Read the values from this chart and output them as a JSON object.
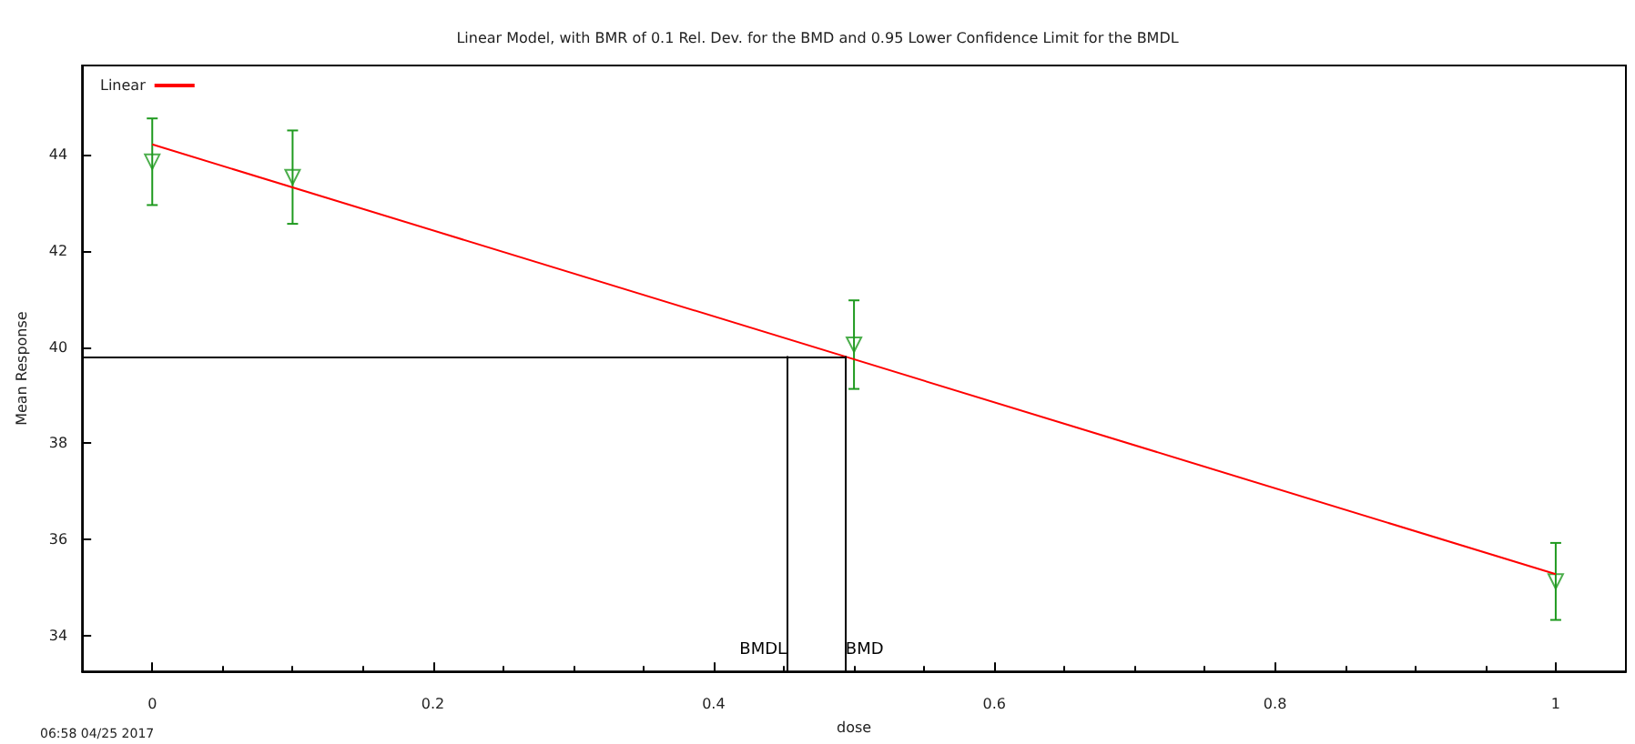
{
  "chart_data": {
    "type": "scatter",
    "title": "Linear Model, with BMR of 0.1 Rel. Dev. for the BMD and 0.95 Lower Confidence Limit for the BMDL",
    "xlabel": "dose",
    "ylabel": "Mean Response",
    "annotations": [
      "06:58 04/25 2017"
    ],
    "series": [
      {
        "color": "#1f9a1f",
        "x": [
          0,
          0.1,
          0.5,
          1
        ],
        "values": [
          43.85,
          43.53,
          40.05,
          35.13
        ],
        "errors": [
          0.9,
          0.97,
          0.92,
          0.8
        ],
        "marker": "triangle"
      },
      {
        "type": "line",
        "name": "Linear",
        "color": "#ff0000",
        "x": [
          0,
          1
        ],
        "values": [
          44.21,
          35.28
        ],
        "marker": "none"
      }
    ],
    "ref_lines": [
      {
        "axis": "y",
        "value": 39.81,
        "label": null,
        "color": "#000000"
      },
      {
        "axis": "x",
        "value": 0.452,
        "label": "BMDL",
        "color": "#000000"
      },
      {
        "axis": "x",
        "value": 0.494,
        "label": "BMD",
        "color": "#000000"
      }
    ],
    "xlim": [
      -0.05,
      1.05
    ],
    "xticks": [
      0,
      0.2,
      0.4,
      0.6,
      0.8,
      1
    ],
    "ylim": [
      33.26,
      45.85
    ],
    "yticks": [
      34,
      36,
      38,
      40,
      42,
      44
    ],
    "grid": false,
    "legend": "top left"
  }
}
